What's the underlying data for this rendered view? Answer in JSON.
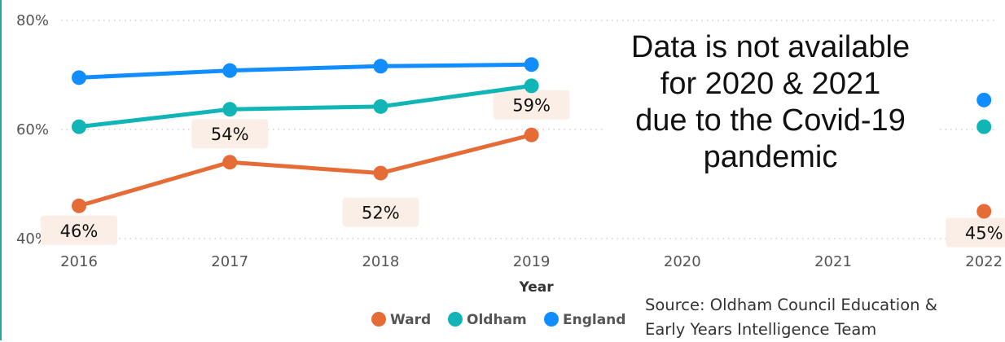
{
  "chart_data": {
    "type": "line",
    "categories": [
      "2016",
      "2017",
      "2018",
      "2019",
      "2020",
      "2021",
      "2022"
    ],
    "series": [
      {
        "name": "Ward",
        "color": "#E66C37",
        "values": [
          46,
          54,
          52,
          59,
          null,
          null,
          45
        ]
      },
      {
        "name": "Oldham",
        "color": "#12B5B5",
        "values": [
          60.5,
          63.7,
          64.2,
          68,
          null,
          null,
          60.5
        ]
      },
      {
        "name": "England",
        "color": "#118DFF",
        "values": [
          69.5,
          70.8,
          71.6,
          71.9,
          null,
          null,
          65.4
        ]
      }
    ],
    "data_labels": [
      {
        "category": "2016",
        "text": "46%"
      },
      {
        "category": "2017",
        "text": "54%"
      },
      {
        "category": "2018",
        "text": "52%"
      },
      {
        "category": "2019",
        "text": "59%"
      },
      {
        "category": "2022",
        "text": "45%"
      }
    ],
    "y_ticks": [
      "40%",
      "60%",
      "80%"
    ],
    "ylim": [
      40,
      80
    ],
    "xlabel": "Year",
    "ylabel": "",
    "legend_position": "bottom",
    "grid": true
  },
  "annotation": {
    "lines": [
      "Data is not available",
      "for 2020 & 2021",
      "due to the Covid-19",
      "pandemic"
    ]
  },
  "source": {
    "line1": "Source: Oldham Council Education &",
    "line2": "Early Years Intelligence Team"
  }
}
